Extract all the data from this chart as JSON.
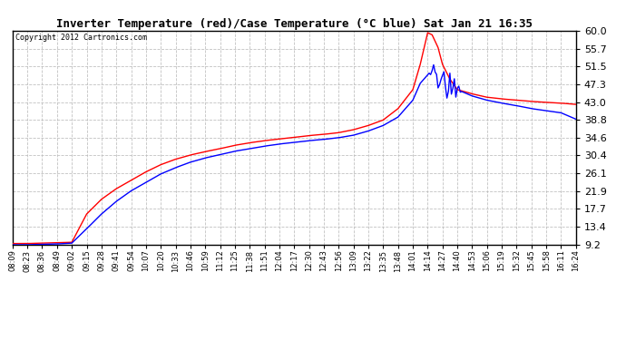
{
  "title": "Inverter Temperature (red)/Case Temperature (°C blue) Sat Jan 21 16:35",
  "copyright": "Copyright 2012 Cartronics.com",
  "ylim": [
    9.2,
    60.0
  ],
  "yticks": [
    9.2,
    13.4,
    17.7,
    21.9,
    26.1,
    30.4,
    34.6,
    38.8,
    43.0,
    47.3,
    51.5,
    55.7,
    60.0
  ],
  "background_color": "#ffffff",
  "grid_color": "#bbbbbb",
  "x_labels": [
    "08:09",
    "08:23",
    "08:36",
    "08:49",
    "09:02",
    "09:15",
    "09:28",
    "09:41",
    "09:54",
    "10:07",
    "10:20",
    "10:33",
    "10:46",
    "10:59",
    "11:12",
    "11:25",
    "11:38",
    "11:51",
    "12:04",
    "12:17",
    "12:30",
    "12:43",
    "12:56",
    "13:09",
    "13:22",
    "13:35",
    "13:48",
    "14:01",
    "14:14",
    "14:27",
    "14:40",
    "14:53",
    "15:06",
    "15:19",
    "15:32",
    "15:45",
    "15:58",
    "16:11",
    "16:24"
  ],
  "red_line_color": "red",
  "blue_line_color": "blue",
  "figsize": [
    6.9,
    3.75
  ],
  "dpi": 100
}
